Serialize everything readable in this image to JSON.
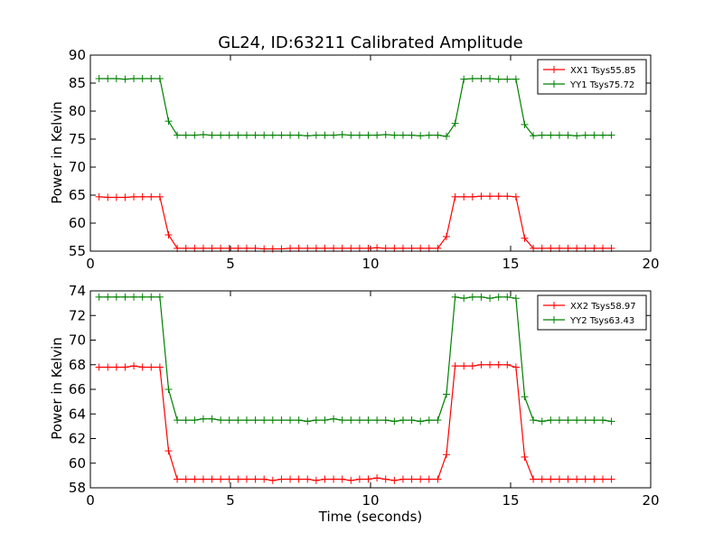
{
  "chart_data": [
    {
      "type": "line",
      "title": "GL24, ID:63211 Calibrated Amplitude",
      "xlabel": "",
      "ylabel": "Power in Kelvin",
      "xlim": [
        0,
        20
      ],
      "ylim": [
        55,
        90
      ],
      "x_ticks": [
        0,
        5,
        10,
        15,
        20
      ],
      "y_ticks": [
        55,
        60,
        65,
        70,
        75,
        80,
        85,
        90
      ],
      "grid": false,
      "legend_position": "top-right",
      "x": [
        0.31,
        0.62,
        0.93,
        1.24,
        1.55,
        1.86,
        2.17,
        2.48,
        2.79,
        3.1,
        3.41,
        3.72,
        4.03,
        4.34,
        4.65,
        4.96,
        5.27,
        5.58,
        5.89,
        6.2,
        6.51,
        6.82,
        7.13,
        7.44,
        7.75,
        8.06,
        8.37,
        8.68,
        8.99,
        9.3,
        9.61,
        9.92,
        10.23,
        10.54,
        10.85,
        11.16,
        11.47,
        11.78,
        12.09,
        12.4,
        12.71,
        13.02,
        13.33,
        13.64,
        13.95,
        14.26,
        14.57,
        14.88,
        15.19,
        15.5,
        15.81,
        16.12,
        16.43,
        16.74,
        17.05,
        17.36,
        17.67,
        17.98,
        18.29,
        18.6
      ],
      "series": [
        {
          "name": "XX1 Tsys55.85",
          "color": "#ff0000",
          "values": [
            64.7,
            64.6,
            64.6,
            64.6,
            64.7,
            64.7,
            64.7,
            64.7,
            57.9,
            55.5,
            55.5,
            55.5,
            55.5,
            55.5,
            55.5,
            55.5,
            55.5,
            55.5,
            55.5,
            55.4,
            55.4,
            55.4,
            55.5,
            55.5,
            55.5,
            55.5,
            55.5,
            55.5,
            55.5,
            55.5,
            55.5,
            55.5,
            55.6,
            55.5,
            55.5,
            55.5,
            55.5,
            55.5,
            55.5,
            55.5,
            57.6,
            64.7,
            64.7,
            64.7,
            64.8,
            64.8,
            64.8,
            64.8,
            64.7,
            57.3,
            55.5,
            55.5,
            55.5,
            55.5,
            55.5,
            55.5,
            55.5,
            55.5,
            55.5,
            55.5
          ]
        },
        {
          "name": "YY1 Tsys75.72",
          "color": "#008000",
          "values": [
            85.8,
            85.8,
            85.8,
            85.7,
            85.8,
            85.8,
            85.8,
            85.8,
            78.2,
            75.7,
            75.7,
            75.7,
            75.8,
            75.7,
            75.7,
            75.7,
            75.7,
            75.7,
            75.7,
            75.7,
            75.7,
            75.7,
            75.7,
            75.7,
            75.6,
            75.7,
            75.7,
            75.7,
            75.8,
            75.7,
            75.7,
            75.7,
            75.7,
            75.8,
            75.7,
            75.7,
            75.7,
            75.6,
            75.7,
            75.7,
            75.5,
            77.8,
            85.7,
            85.8,
            85.8,
            85.8,
            85.7,
            85.7,
            85.7,
            77.6,
            75.6,
            75.7,
            75.7,
            75.7,
            75.7,
            75.6,
            75.7,
            75.7,
            75.7,
            75.7
          ]
        }
      ]
    },
    {
      "type": "line",
      "title": "",
      "xlabel": "Time (seconds)",
      "ylabel": "Power in Kelvin",
      "xlim": [
        0,
        20
      ],
      "ylim": [
        58,
        74
      ],
      "x_ticks": [
        0,
        5,
        10,
        15,
        20
      ],
      "y_ticks": [
        58,
        60,
        62,
        64,
        66,
        68,
        70,
        72,
        74
      ],
      "grid": false,
      "legend_position": "top-right",
      "x": [
        0.31,
        0.62,
        0.93,
        1.24,
        1.55,
        1.86,
        2.17,
        2.48,
        2.79,
        3.1,
        3.41,
        3.72,
        4.03,
        4.34,
        4.65,
        4.96,
        5.27,
        5.58,
        5.89,
        6.2,
        6.51,
        6.82,
        7.13,
        7.44,
        7.75,
        8.06,
        8.37,
        8.68,
        8.99,
        9.3,
        9.61,
        9.92,
        10.23,
        10.54,
        10.85,
        11.16,
        11.47,
        11.78,
        12.09,
        12.4,
        12.71,
        13.02,
        13.33,
        13.64,
        13.95,
        14.26,
        14.57,
        14.88,
        15.19,
        15.5,
        15.81,
        16.12,
        16.43,
        16.74,
        17.05,
        17.36,
        17.67,
        17.98,
        18.29,
        18.6
      ],
      "series": [
        {
          "name": "XX2 Tsys58.97",
          "color": "#ff0000",
          "values": [
            67.8,
            67.8,
            67.8,
            67.8,
            67.9,
            67.8,
            67.8,
            67.8,
            61.0,
            58.7,
            58.7,
            58.7,
            58.7,
            58.7,
            58.7,
            58.7,
            58.7,
            58.7,
            58.7,
            58.7,
            58.6,
            58.7,
            58.7,
            58.7,
            58.7,
            58.6,
            58.7,
            58.7,
            58.7,
            58.6,
            58.7,
            58.7,
            58.8,
            58.7,
            58.6,
            58.7,
            58.7,
            58.7,
            58.7,
            58.7,
            60.7,
            67.9,
            67.9,
            67.9,
            68.0,
            68.0,
            68.0,
            68.0,
            67.8,
            60.5,
            58.7,
            58.7,
            58.7,
            58.7,
            58.7,
            58.7,
            58.7,
            58.7,
            58.7,
            58.7
          ]
        },
        {
          "name": "YY2 Tsys63.43",
          "color": "#008000",
          "values": [
            73.5,
            73.5,
            73.5,
            73.5,
            73.5,
            73.5,
            73.5,
            73.5,
            66.0,
            63.5,
            63.5,
            63.5,
            63.6,
            63.6,
            63.5,
            63.5,
            63.5,
            63.5,
            63.5,
            63.5,
            63.5,
            63.5,
            63.5,
            63.5,
            63.4,
            63.5,
            63.5,
            63.6,
            63.5,
            63.5,
            63.5,
            63.5,
            63.5,
            63.5,
            63.4,
            63.5,
            63.5,
            63.4,
            63.5,
            63.5,
            65.6,
            73.5,
            73.4,
            73.5,
            73.5,
            73.4,
            73.5,
            73.5,
            73.4,
            65.4,
            63.5,
            63.4,
            63.5,
            63.5,
            63.5,
            63.5,
            63.5,
            63.5,
            63.5,
            63.4
          ]
        }
      ]
    }
  ]
}
